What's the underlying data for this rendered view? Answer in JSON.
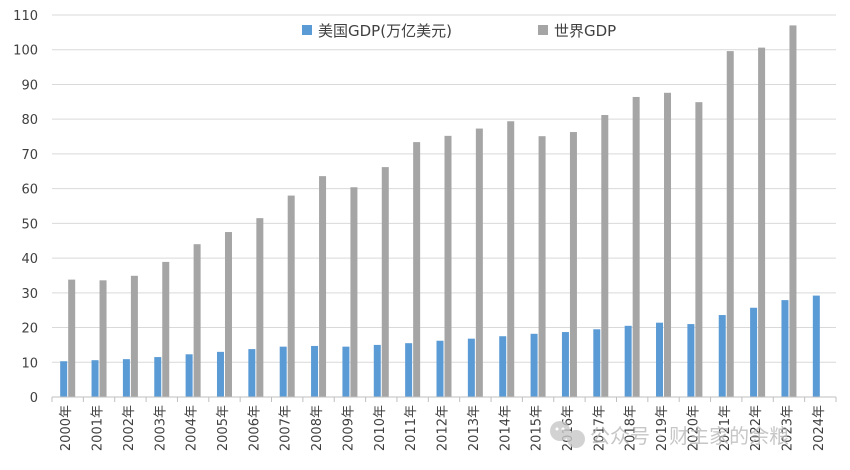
{
  "chart_data": {
    "type": "bar",
    "ylim": [
      0,
      110
    ],
    "yticks": [
      0,
      10,
      20,
      30,
      40,
      50,
      60,
      70,
      80,
      90,
      100,
      110
    ],
    "grid": true,
    "legend_position": "top-center",
    "categories": [
      "2000年",
      "2001年",
      "2002年",
      "2003年",
      "2004年",
      "2005年",
      "2006年",
      "2007年",
      "2008年",
      "2009年",
      "2010年",
      "2011年",
      "2012年",
      "2013年",
      "2014年",
      "2015年",
      "2016年",
      "2017年",
      "2018年",
      "2019年",
      "2020年",
      "2021年",
      "2022年",
      "2023年",
      "2024年"
    ],
    "series": [
      {
        "name": "美国GDP(万亿美元)",
        "color": "#5b9bd5",
        "values": [
          10.3,
          10.6,
          10.9,
          11.5,
          12.3,
          13.0,
          13.8,
          14.5,
          14.7,
          14.5,
          15.0,
          15.5,
          16.2,
          16.8,
          17.5,
          18.2,
          18.7,
          19.5,
          20.5,
          21.4,
          21.0,
          23.6,
          25.7,
          27.9,
          29.2
        ]
      },
      {
        "name": "世界GDP",
        "color": "#a5a5a5",
        "values": [
          33.8,
          33.6,
          34.9,
          38.9,
          44.0,
          47.5,
          51.5,
          58.0,
          63.6,
          60.4,
          66.2,
          73.4,
          75.2,
          77.3,
          79.4,
          75.1,
          76.3,
          81.2,
          86.4,
          87.6,
          84.9,
          99.6,
          100.6,
          107.0,
          null
        ]
      }
    ]
  },
  "watermark": {
    "text": "公众号 · 财主家的余粮",
    "icon": "wechat-icon"
  }
}
